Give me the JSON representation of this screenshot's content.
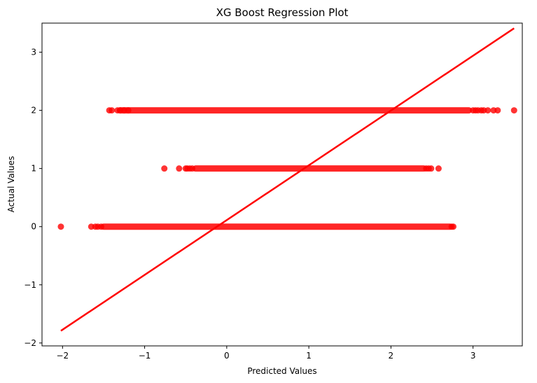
{
  "chart_data": {
    "type": "scatter",
    "title": "XG Boost Regression Plot",
    "xlabel": "Predicted Values",
    "ylabel": "Actual Values",
    "xlim": [
      -2.25,
      3.6
    ],
    "ylim": [
      -2.05,
      3.5
    ],
    "xticks": [
      {
        "value": -2,
        "label": "−2"
      },
      {
        "value": -1,
        "label": "−1"
      },
      {
        "value": 0,
        "label": "0"
      },
      {
        "value": 1,
        "label": "1"
      },
      {
        "value": 2,
        "label": "2"
      },
      {
        "value": 3,
        "label": "3"
      }
    ],
    "yticks": [
      {
        "value": -2,
        "label": "−2"
      },
      {
        "value": -1,
        "label": "−1"
      },
      {
        "value": 0,
        "label": "0"
      },
      {
        "value": 1,
        "label": "1"
      },
      {
        "value": 2,
        "label": "2"
      },
      {
        "value": 3,
        "label": "3"
      }
    ],
    "grid": false,
    "legend": "none",
    "color": "#ff0000",
    "series": [
      {
        "y": 2,
        "band": [
          -1.3,
          2.95
        ],
        "points": [
          -1.43,
          -1.4,
          -1.33,
          -1.3,
          -1.25,
          -1.2,
          3.0,
          3.03,
          3.06,
          3.1,
          3.13,
          3.18,
          3.25,
          3.3,
          3.5
        ]
      },
      {
        "y": 1,
        "band": [
          -0.38,
          2.4
        ],
        "points": [
          -0.76,
          -0.58,
          -0.5,
          -0.48,
          -0.45,
          -0.42,
          2.43,
          2.46,
          2.49,
          2.58
        ]
      },
      {
        "y": 0,
        "band": [
          -1.5,
          2.72
        ],
        "points": [
          -2.02,
          -1.65,
          -1.6,
          -1.57,
          -1.53,
          2.74,
          2.76
        ]
      }
    ],
    "regression_line": {
      "x": [
        -2.02,
        3.5
      ],
      "y": [
        -1.79,
        3.41
      ]
    }
  }
}
